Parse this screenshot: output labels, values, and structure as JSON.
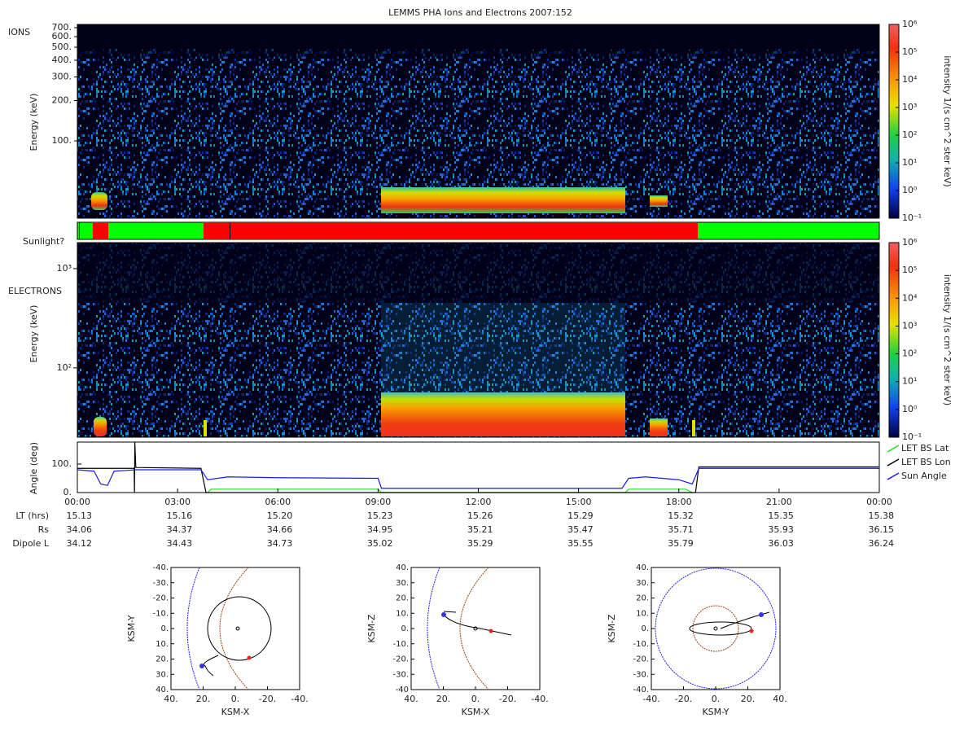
{
  "title": "LEMMS PHA Ions and Electrons  2007:152",
  "ions": {
    "label": "IONS",
    "ylabel": "Energy (keV)",
    "ylim": [
      26.5,
      740
    ],
    "yticks": [
      {
        "value": 700,
        "label": "700."
      },
      {
        "value": 600,
        "label": "600."
      },
      {
        "value": 500,
        "label": "500."
      },
      {
        "value": 400,
        "label": "400."
      },
      {
        "value": 300,
        "label": "300."
      },
      {
        "value": 200,
        "label": "200."
      },
      {
        "value": 100,
        "label": "100."
      }
    ]
  },
  "sunlight": {
    "label": "Sunlight?"
  },
  "electrons": {
    "label": "ELECTRONS",
    "ylabel": "Energy (keV)",
    "ylim": [
      20,
      1830
    ],
    "yticks": [
      {
        "value": 1000,
        "label": "10³"
      },
      {
        "value": 100,
        "label": "10²"
      }
    ]
  },
  "colorbar": {
    "label": "intensity 1/(s cm^2 ster keV)",
    "lim": [
      0.1,
      1000000
    ],
    "ticks": [
      {
        "value": 1000000,
        "label": "10⁶"
      },
      {
        "value": 100000,
        "label": "10⁵"
      },
      {
        "value": 10000,
        "label": "10⁴"
      },
      {
        "value": 1000,
        "label": "10³"
      },
      {
        "value": 100,
        "label": "10²"
      },
      {
        "value": 10,
        "label": "10¹"
      },
      {
        "value": 1,
        "label": "10⁰"
      },
      {
        "value": 0.1,
        "label": "10⁻¹"
      }
    ]
  },
  "angle": {
    "ylabel": "Angle (deg)",
    "ylim": [
      0,
      177
    ],
    "yticks": [
      {
        "value": 100,
        "label": "100."
      },
      {
        "value": 0,
        "label": "0."
      }
    ],
    "xlim": [
      0,
      24
    ],
    "series": [
      {
        "name": "LET BS Lat",
        "color": "#22dd22",
        "x": [
          3.9,
          4.0,
          9.0,
          9.1,
          16.4,
          16.5,
          18.2,
          18.4
        ],
        "values": [
          0,
          12,
          12,
          0,
          0,
          12,
          12,
          0
        ]
      },
      {
        "name": "LET BS Lon",
        "color": "#000000",
        "x": [
          0,
          1.7,
          1.71,
          1.72,
          1.75,
          3.7,
          3.85,
          18.5,
          18.6,
          24
        ],
        "values": [
          85,
          85,
          0,
          177,
          88,
          85,
          0,
          0,
          90,
          90
        ]
      },
      {
        "name": "Sun Angle",
        "color": "#1a1aee",
        "x": [
          0,
          0.5,
          0.7,
          0.9,
          1.1,
          1.5,
          1.75,
          3.7,
          3.9,
          4.5,
          6,
          9,
          9.1,
          16.3,
          16.5,
          17,
          17.5,
          18,
          18.4,
          18.6,
          24
        ],
        "values": [
          80,
          75,
          30,
          25,
          75,
          78,
          80,
          80,
          45,
          55,
          52,
          50,
          15,
          15,
          50,
          55,
          50,
          45,
          30,
          85,
          85
        ]
      }
    ]
  },
  "time": {
    "xlim": [
      0,
      24
    ],
    "ticks": [
      {
        "value": 0,
        "label": "00:00"
      },
      {
        "value": 3,
        "label": "03:00"
      },
      {
        "value": 6,
        "label": "06:00"
      },
      {
        "value": 9,
        "label": "09:00"
      },
      {
        "value": 12,
        "label": "12:00"
      },
      {
        "value": 15,
        "label": "15:00"
      },
      {
        "value": 18,
        "label": "18:00"
      },
      {
        "value": 21,
        "label": "21:00"
      },
      {
        "value": 24,
        "label": "00:00"
      }
    ]
  },
  "ephemeris": [
    {
      "label": "LT (hrs)",
      "values": [
        "15.13",
        "15.16",
        "15.20",
        "15.23",
        "15.26",
        "15.29",
        "15.32",
        "15.35",
        "15.38"
      ]
    },
    {
      "label": "Rs",
      "values": [
        "34.06",
        "34.37",
        "34.66",
        "34.95",
        "35.21",
        "35.47",
        "35.71",
        "35.93",
        "36.15"
      ]
    },
    {
      "label": "Dipole L",
      "values": [
        "34.12",
        "34.43",
        "34.73",
        "35.02",
        "35.29",
        "35.55",
        "35.79",
        "36.03",
        "36.24"
      ]
    }
  ],
  "orbits": [
    {
      "xlabel": "KSM-X",
      "ylabel": "KSM-Y",
      "xticks": [
        "40.",
        "20.",
        "0.",
        "-20.",
        "-40."
      ],
      "yticks": [
        "-40.",
        "-30.",
        "-20.",
        "-10.",
        "0.",
        "10.",
        "20.",
        "30.",
        "40."
      ]
    },
    {
      "xlabel": "KSM-X",
      "ylabel": "KSM-Z",
      "xticks": [
        "40.",
        "20.",
        "0.",
        "-20.",
        "-40."
      ],
      "yticks": [
        "40.",
        "30.",
        "20.",
        "10.",
        "0.",
        "-10.",
        "-20.",
        "-30.",
        "-40"
      ]
    },
    {
      "xlabel": "KSM-Y",
      "ylabel": "KSM-Z",
      "xticks": [
        "-40.",
        "-20.",
        "0.",
        "20.",
        "40."
      ],
      "yticks": [
        "40.",
        "30.",
        "20.",
        "10.",
        "0.",
        "-10.",
        "-20.",
        "-30.",
        "-40."
      ]
    }
  ]
}
